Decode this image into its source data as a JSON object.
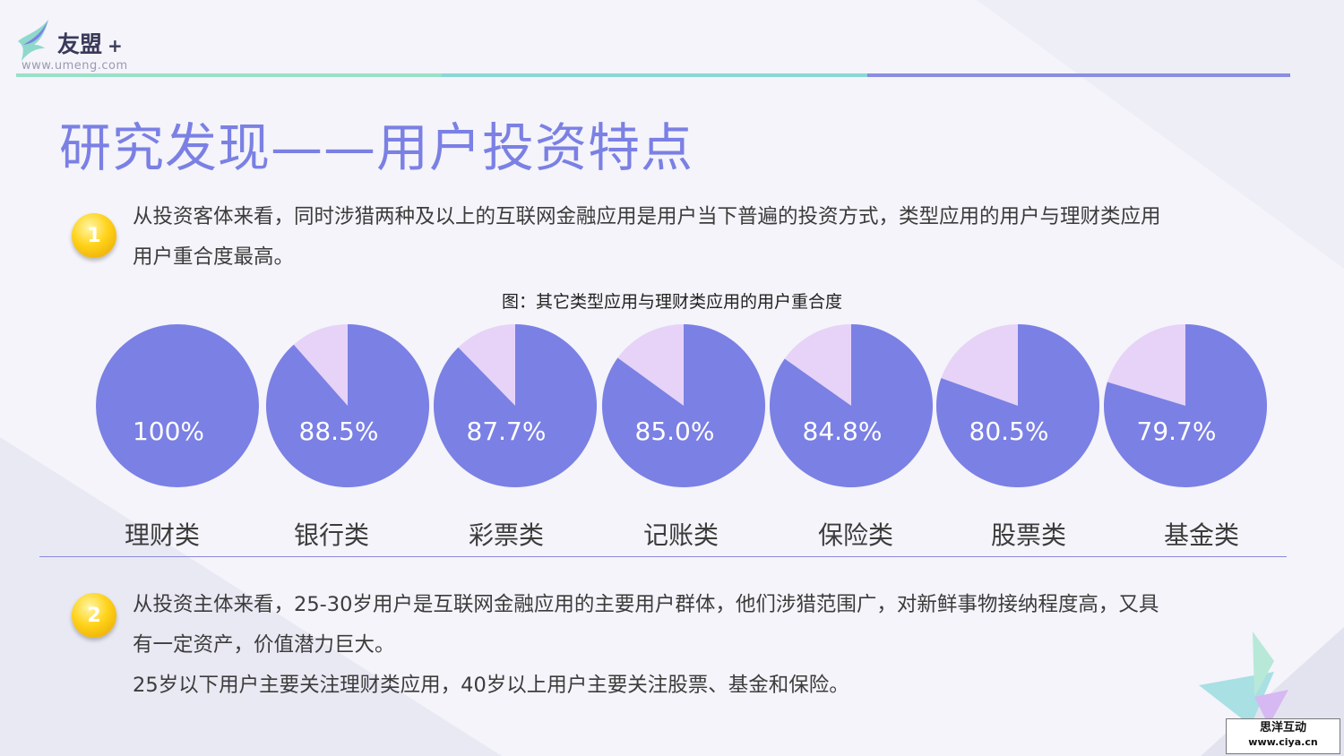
{
  "logo": {
    "name": "友盟",
    "plus": "+",
    "url": "www.umeng.com"
  },
  "colors": {
    "accent": "#7b80e4",
    "slice_main": "#7b80e4",
    "slice_rest": "#e6d3f7",
    "badge": "#ffd21a"
  },
  "title": "研究发现——用户投资特点",
  "section1": {
    "badge": "1",
    "line1": "从投资客体来看，同时涉猎两种及以上的互联网金融应用是用户当下普遍的投资方式，类型应用的用户与理财类应用",
    "line2": "用户重合度最高。"
  },
  "chart_data": {
    "type": "pie",
    "title": "图：其它类型应用与理财类应用的用户重合度",
    "categories": [
      "理财类",
      "银行类",
      "彩票类",
      "记账类",
      "保险类",
      "股票类",
      "基金类"
    ],
    "values": [
      100,
      88.5,
      87.7,
      85.0,
      84.8,
      80.5,
      79.7
    ],
    "labels": [
      "100%",
      "88.5%",
      "87.7%",
      "85.0%",
      "84.8%",
      "80.5%",
      "79.7%"
    ],
    "unit": "%"
  },
  "section2": {
    "badge": "2",
    "line1": "从投资主体来看，25-30岁用户是互联网金融应用的主要用户群体，他们涉猎范围广，对新鲜事物接纳程度高，又具",
    "line2": "有一定资产，价值潜力巨大。",
    "line3": "25岁以下用户主要关注理财类应用，40岁以上用户主要关注股票、基金和保险。"
  },
  "watermark": {
    "cn": "思洋互动",
    "url": "www.ciya.cn"
  }
}
